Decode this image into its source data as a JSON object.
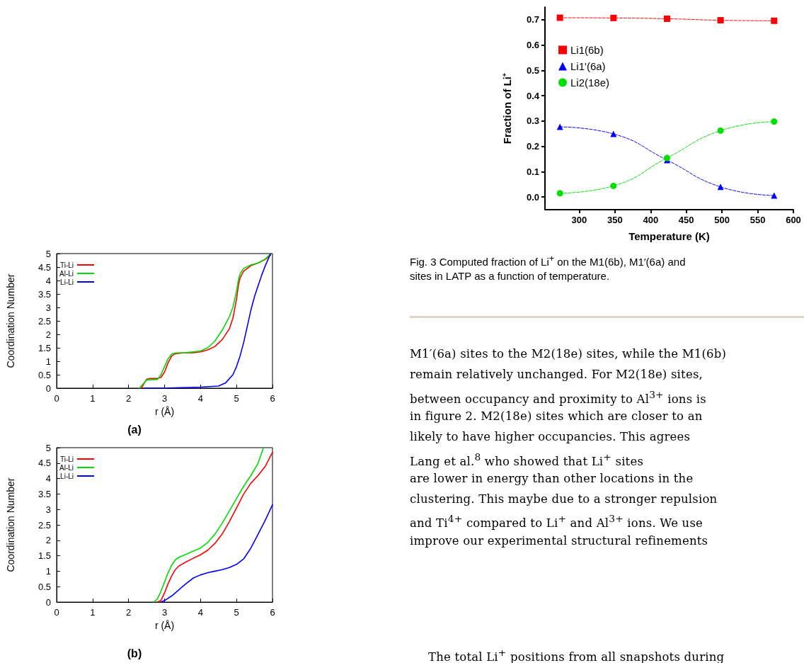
{
  "chart_data": [
    {
      "type": "line",
      "xlabel": "r (Å)",
      "ylabel": "Coordination Number",
      "annotations": [
        "(a)"
      ],
      "xlim": [
        0,
        6
      ],
      "xticks": [
        0,
        1,
        2,
        3,
        4,
        5,
        6
      ],
      "ylim": [
        0,
        5
      ],
      "yticks": [
        0,
        0.5,
        1,
        1.5,
        2,
        2.5,
        3,
        3.5,
        4,
        4.5,
        5
      ],
      "grid": false,
      "legend": "top left",
      "marker": "none",
      "line_style": "solid",
      "series": [
        {
          "name": "Ti-Li",
          "color": "#ff0000",
          "x": [
            2.35,
            2.4,
            2.5,
            2.6,
            2.8,
            2.9,
            3.0,
            3.1,
            3.2,
            3.3,
            3.5,
            3.8,
            4.0,
            4.2,
            4.4,
            4.6,
            4.8,
            4.9,
            5.0,
            5.05,
            5.1,
            5.2,
            5.4,
            5.6,
            5.8,
            5.95
          ],
          "values": [
            0,
            0.1,
            0.33,
            0.36,
            0.36,
            0.4,
            0.6,
            0.95,
            1.2,
            1.28,
            1.31,
            1.32,
            1.35,
            1.42,
            1.55,
            1.8,
            2.2,
            2.6,
            3.3,
            3.8,
            4.1,
            4.35,
            4.55,
            4.65,
            4.78,
            4.95
          ]
        },
        {
          "name": "Al-Li",
          "color": "#00dd00",
          "x": [
            2.3,
            2.4,
            2.5,
            2.6,
            2.8,
            2.9,
            3.0,
            3.1,
            3.2,
            3.3,
            3.6,
            4.0,
            4.2,
            4.4,
            4.6,
            4.8,
            4.9,
            5.0,
            5.05,
            5.1,
            5.2,
            5.4,
            5.6,
            5.8,
            5.95
          ],
          "values": [
            0,
            0.15,
            0.3,
            0.32,
            0.32,
            0.5,
            0.8,
            1.1,
            1.27,
            1.31,
            1.32,
            1.38,
            1.5,
            1.75,
            2.15,
            2.65,
            3.0,
            3.6,
            4.0,
            4.25,
            4.45,
            4.58,
            4.65,
            4.8,
            5.0
          ]
        },
        {
          "name": "Li-Li",
          "color": "#0000ff",
          "x": [
            2.4,
            3.0,
            3.5,
            4.0,
            4.5,
            4.7,
            4.9,
            5.0,
            5.1,
            5.2,
            5.3,
            5.4,
            5.5,
            5.6,
            5.7,
            5.8,
            5.9,
            5.95
          ],
          "values": [
            0,
            0,
            0.02,
            0.04,
            0.08,
            0.2,
            0.5,
            0.8,
            1.2,
            1.7,
            2.3,
            2.9,
            3.4,
            3.8,
            4.2,
            4.55,
            4.85,
            5.0
          ]
        }
      ]
    },
    {
      "type": "line",
      "xlabel": "r (Å)",
      "ylabel": "Coordination Number",
      "annotations": [
        "(b)"
      ],
      "xlim": [
        0,
        6
      ],
      "xticks": [
        0,
        1,
        2,
        3,
        4,
        5,
        6
      ],
      "ylim": [
        0,
        5
      ],
      "yticks": [
        0,
        0.5,
        1,
        1.5,
        2,
        2.5,
        3,
        3.5,
        4,
        4.5,
        5
      ],
      "grid": false,
      "legend": "top left",
      "marker": "none",
      "line_style": "solid",
      "series": [
        {
          "name": "Ti-Li",
          "color": "#ff0000",
          "x": [
            2.8,
            2.9,
            3.0,
            3.1,
            3.2,
            3.3,
            3.4,
            3.6,
            3.8,
            4.0,
            4.2,
            4.4,
            4.6,
            4.8,
            5.0,
            5.2,
            5.4,
            5.6,
            5.8,
            6.0
          ],
          "values": [
            0,
            0.05,
            0.3,
            0.6,
            0.85,
            1.05,
            1.17,
            1.3,
            1.42,
            1.53,
            1.68,
            1.9,
            2.2,
            2.6,
            3.05,
            3.5,
            3.85,
            4.1,
            4.4,
            4.85
          ]
        },
        {
          "name": "Al-Li",
          "color": "#00dd00",
          "x": [
            2.7,
            2.8,
            2.9,
            3.0,
            3.1,
            3.2,
            3.3,
            3.4,
            3.6,
            3.8,
            4.0,
            4.2,
            4.4,
            4.6,
            4.8,
            5.0,
            5.2,
            5.4,
            5.6,
            5.75
          ],
          "values": [
            0,
            0.1,
            0.35,
            0.65,
            0.95,
            1.2,
            1.37,
            1.45,
            1.55,
            1.65,
            1.75,
            1.93,
            2.2,
            2.55,
            2.95,
            3.35,
            3.75,
            4.1,
            4.5,
            5.0
          ]
        },
        {
          "name": "Li-Li",
          "color": "#0000ff",
          "x": [
            2.9,
            3.0,
            3.2,
            3.4,
            3.6,
            3.8,
            4.0,
            4.2,
            4.4,
            4.6,
            4.8,
            5.0,
            5.2,
            5.4,
            5.6,
            5.8,
            6.0
          ],
          "values": [
            0,
            0.05,
            0.2,
            0.4,
            0.6,
            0.78,
            0.88,
            0.95,
            1.0,
            1.05,
            1.12,
            1.22,
            1.4,
            1.75,
            2.2,
            2.65,
            3.15
          ]
        }
      ]
    },
    {
      "type": "line",
      "xlabel": "Temperature (K)",
      "ylabel": "Fraction of Li$^{+}$",
      "x": [
        273,
        348,
        423,
        498,
        573
      ],
      "xlim": [
        252,
        600
      ],
      "xticks": [
        300,
        350,
        400,
        450,
        500,
        550,
        600
      ],
      "ylim": [
        -0.05,
        0.75
      ],
      "yticks": [
        {
          "value": 0,
          "label": "0.0"
        },
        0.1,
        0.2,
        0.3,
        0.4,
        0.5,
        0.6,
        0.7
      ],
      "grid": false,
      "legend": "top left",
      "line_style": "dashed",
      "annotations": [
        "Fig. 3 Computed fraction of Li$^{+}$ on the M1(6b), M1′(6a) and",
        "sites in LATP as a function of temperature.",
        "M1′(6a) sites to the M2(18e) sites, while the M1(6b)",
        "remain relatively unchanged. For M2(18e) sites,",
        "between occupancy and proximity to Al$^{3+}$ ions is",
        "in figure 2. M2(18e) sites which are closer to an",
        "likely to have higher occupancies. This agrees",
        "Lang et al.$^{8}$ who showed that Li$^{+}$ sites",
        "are lower in energy than other locations in the",
        "clustering. This maybe due to a stronger repulsion",
        "and Ti$^{4+}$ compared to Li$^{+}$ and Al$^{3+}$ ions. We use",
        "improve our experimental structural refinements",
        "The total Li$^{+}$ positions from all snapshots during"
      ],
      "series": [
        {
          "name": "Li1(6b)",
          "color": "#ff0000",
          "marker": "square",
          "values": [
            0.708,
            0.707,
            0.704,
            0.698,
            0.696
          ]
        },
        {
          "name": "Li1'(6a)",
          "color": "#0000ff",
          "marker": "triangle",
          "values": [
            0.277,
            0.249,
            0.146,
            0.04,
            0.006
          ]
        },
        {
          "name": "Li2(18e)",
          "color": "#00e000",
          "marker": "circle",
          "values": [
            0.015,
            0.044,
            0.154,
            0.262,
            0.298
          ]
        }
      ]
    }
  ]
}
